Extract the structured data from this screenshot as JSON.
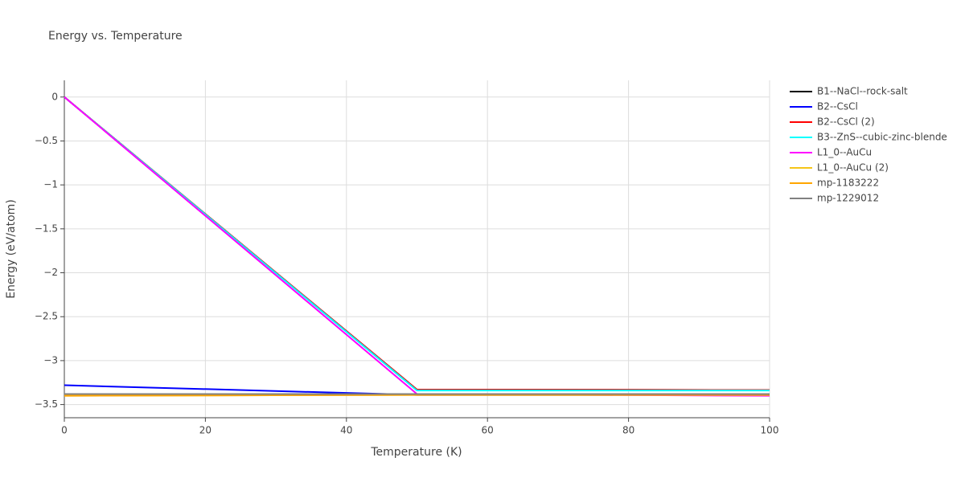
{
  "chart_data": {
    "type": "line",
    "title": "Energy vs. Temperature",
    "x_label": "Temperature (K)",
    "y_label": "Energy (eV/atom)",
    "x": [
      0,
      50,
      100
    ],
    "series": [
      {
        "name": "B1--NaCl--rock-salt",
        "color": "#000000",
        "values": [
          0,
          -3.33,
          -3.335
        ]
      },
      {
        "name": "B2--CsCl",
        "color": "#0000ff",
        "values": [
          -3.28,
          -3.39,
          -3.39
        ]
      },
      {
        "name": "B2--CsCl (2)",
        "color": "#ff0000",
        "values": [
          0,
          -3.33,
          -3.335
        ]
      },
      {
        "name": "B3--ZnS--cubic-zinc-blende",
        "color": "#00ffff",
        "values": [
          0,
          -3.34,
          -3.34
        ]
      },
      {
        "name": "L1_0--AuCu",
        "color": "#ff00ff",
        "values": [
          0,
          -3.38,
          -3.4
        ]
      },
      {
        "name": "L1_0--AuCu (2)",
        "color": "#f5c518",
        "values": [
          -3.4,
          -3.39,
          -3.39
        ]
      },
      {
        "name": "mp-1183222",
        "color": "#ffa500",
        "values": [
          -3.4,
          -3.39,
          -3.39
        ]
      },
      {
        "name": "mp-1229012",
        "color": "#808080",
        "values": [
          -3.38,
          -3.38,
          -3.38
        ]
      }
    ],
    "xlim": [
      0,
      100
    ],
    "xticks": [
      0,
      20,
      40,
      60,
      80,
      100
    ],
    "ylim": [
      -3.65,
      0.19
    ],
    "yticks": [
      {
        "value": -3.5,
        "label": "−3.5"
      },
      {
        "value": -3,
        "label": "−3"
      },
      {
        "value": -2.5,
        "label": "−2.5"
      },
      {
        "value": -2,
        "label": "−2"
      },
      {
        "value": -1.5,
        "label": "−1.5"
      },
      {
        "value": -1,
        "label": "−1"
      },
      {
        "value": -0.5,
        "label": "−0.5"
      },
      0
    ],
    "grid": true
  }
}
